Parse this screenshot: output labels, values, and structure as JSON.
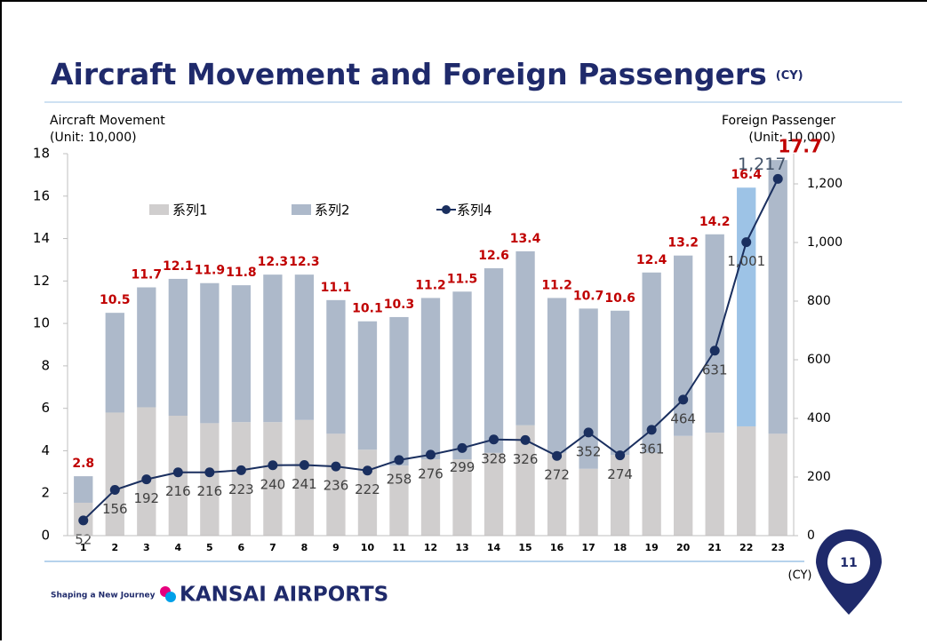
{
  "title": "Aircraft Movement and Foreign Passengers",
  "title_suffix": "(CY)",
  "chart_data": {
    "type": "bar",
    "y_label": "Aircraft Movement",
    "y_unit": "(Unit: 10,000)",
    "y2_label": "Foreign Passenger",
    "y2_unit": "(Unit: 10,000)",
    "x_unit": "(CY)",
    "categories": [
      "1",
      "2",
      "3",
      "4",
      "5",
      "6",
      "7",
      "8",
      "9",
      "10",
      "11",
      "12",
      "13",
      "14",
      "15",
      "16",
      "17",
      "18",
      "19",
      "20",
      "21",
      "22",
      "23"
    ],
    "ylim": [
      0,
      18
    ],
    "yticks": [
      0,
      2,
      4,
      6,
      8,
      10,
      12,
      14,
      16,
      18
    ],
    "y2lim": [
      0,
      1303
    ],
    "y2ticks": [
      0,
      200,
      400,
      600,
      800,
      {
        "value": 1000,
        "label": "1,000"
      },
      {
        "value": 1200,
        "label": "1,200"
      }
    ],
    "series": [
      {
        "name": "系列1",
        "color": "#d0cece",
        "values": [
          1.55,
          5.8,
          6.05,
          5.65,
          5.3,
          5.35,
          5.35,
          5.45,
          4.8,
          4.05,
          3.3,
          3.6,
          3.6,
          3.9,
          5.2,
          3.9,
          3.15,
          3.8,
          3.9,
          4.7,
          4.85,
          5.15,
          4.8
        ]
      },
      {
        "name": "系列2",
        "color": "#adb9ca",
        "colors": [
          "#adb9ca",
          "#adb9ca",
          "#adb9ca",
          "#adb9ca",
          "#adb9ca",
          "#adb9ca",
          "#adb9ca",
          "#adb9ca",
          "#adb9ca",
          "#adb9ca",
          "#adb9ca",
          "#adb9ca",
          "#adb9ca",
          "#adb9ca",
          "#adb9ca",
          "#adb9ca",
          "#adb9ca",
          "#adb9ca",
          "#adb9ca",
          "#adb9ca",
          "#adb9ca",
          "#9dc3e6",
          "#adb9ca"
        ],
        "values": [
          1.25,
          4.7,
          5.65,
          6.45,
          6.6,
          6.45,
          6.95,
          6.85,
          6.3,
          6.05,
          7.0,
          7.6,
          7.9,
          8.7,
          8.2,
          7.3,
          7.55,
          6.8,
          8.5,
          8.5,
          9.35,
          11.25,
          12.9
        ]
      },
      {
        "name": "系列4",
        "type": "line",
        "axis": "y2",
        "color": "#1a2f5f",
        "values": [
          52,
          156,
          192,
          216,
          216,
          223,
          240,
          241,
          236,
          222,
          258,
          276,
          299,
          328,
          326,
          272,
          352,
          274,
          361,
          464,
          631,
          1001,
          1217
        ],
        "value_labels": [
          "52",
          "156",
          "192",
          "216",
          "216",
          "223",
          "240",
          "241",
          "236",
          "222",
          "258",
          "276",
          "299",
          "328",
          "326",
          "272",
          "352",
          "274",
          "361",
          "464",
          "631",
          "1,001",
          "1,217"
        ]
      }
    ],
    "totals": [
      2.8,
      10.5,
      11.7,
      12.1,
      11.9,
      11.8,
      12.3,
      12.3,
      11.1,
      10.1,
      10.3,
      11.2,
      11.5,
      12.6,
      13.4,
      11.2,
      10.7,
      10.6,
      12.4,
      13.2,
      14.2,
      16.4,
      17.7
    ],
    "totals_color": "#c00000"
  },
  "footer": {
    "tagline": "Shaping a New Journey",
    "brand": "KANSAI AIRPORTS",
    "page": "11"
  }
}
